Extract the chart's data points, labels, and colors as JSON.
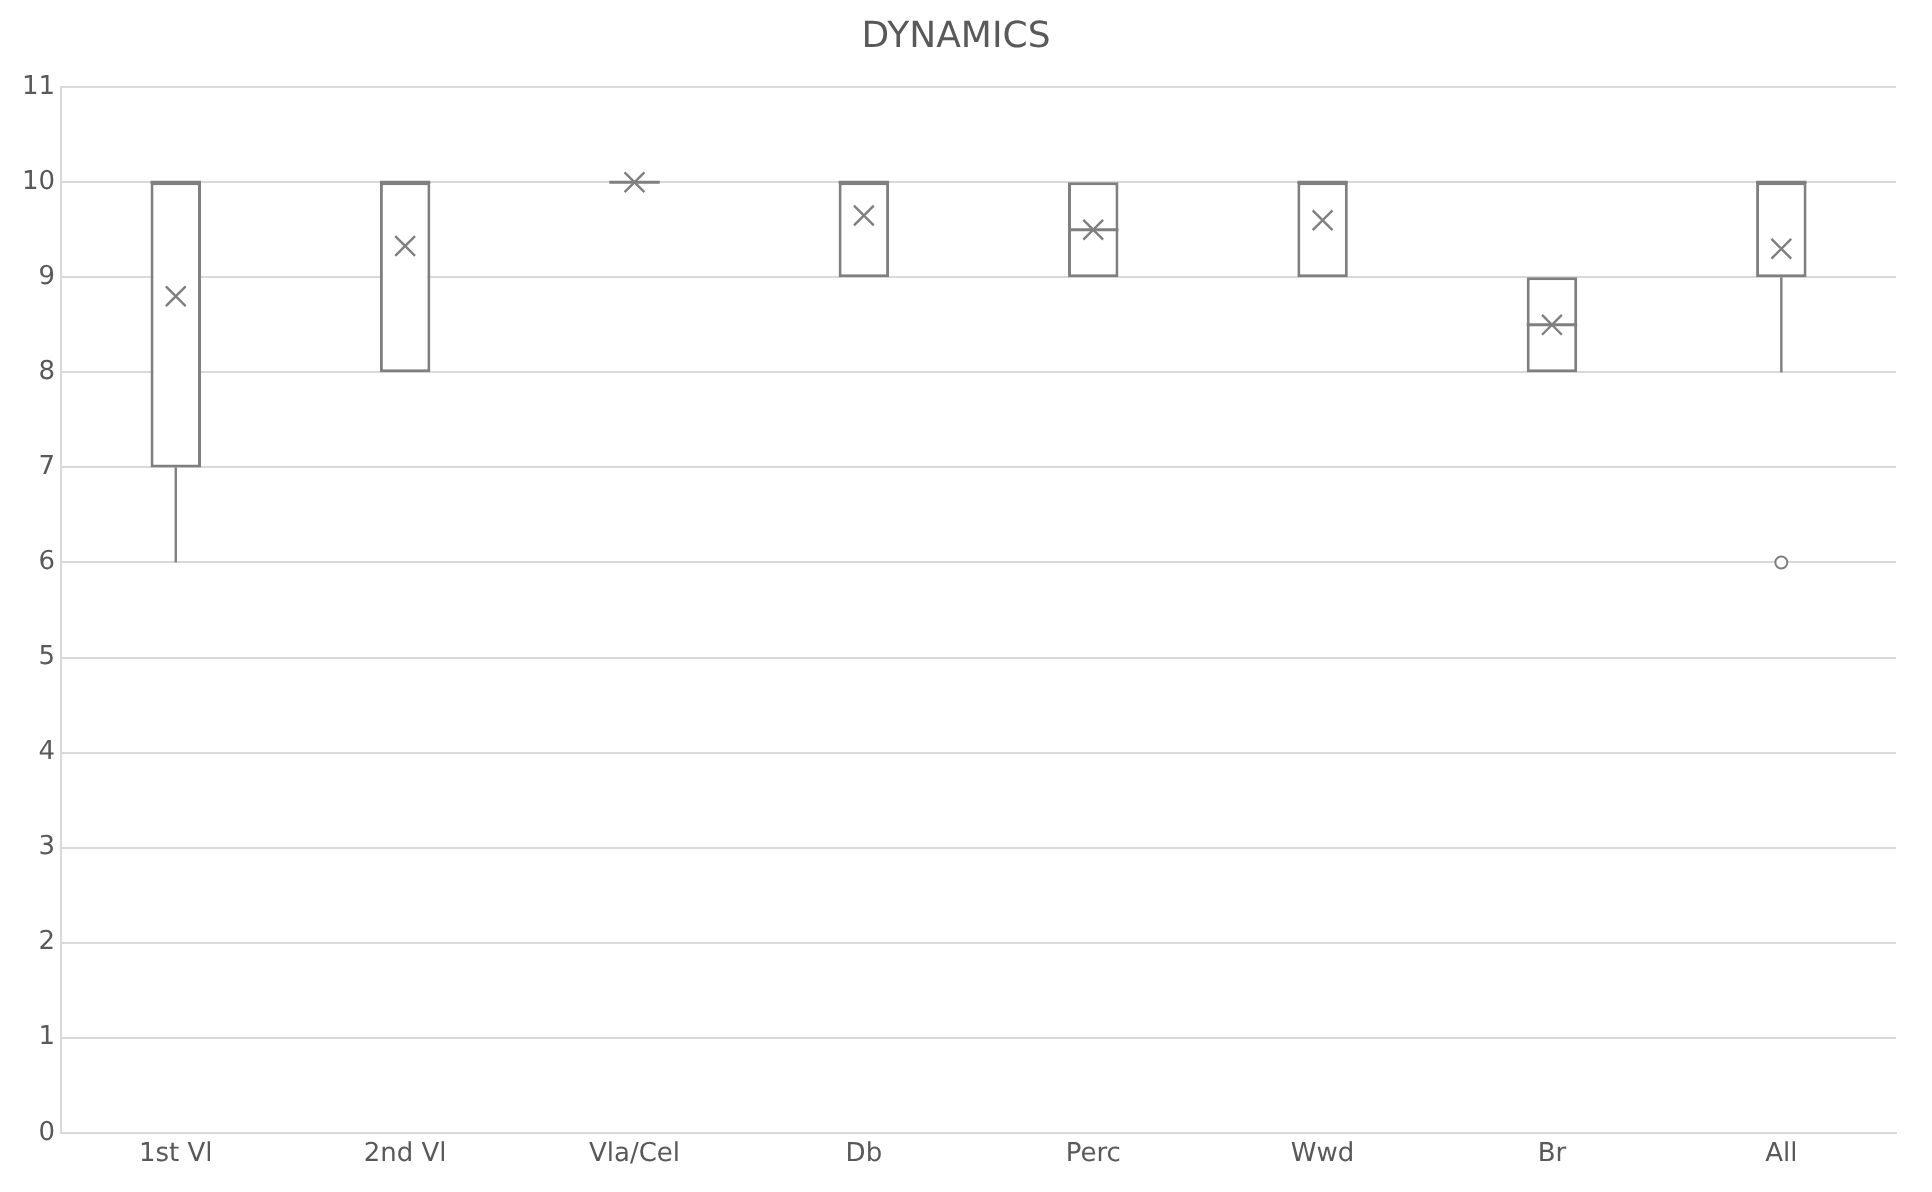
{
  "chart_data": {
    "type": "box",
    "title": "DYNAMICS",
    "categories": [
      "1st Vl",
      "2nd Vl",
      "Vla/Cel",
      "Db",
      "Perc",
      "Wwd",
      "Br",
      "All"
    ],
    "color": "#7f7f7f",
    "boxes": [
      {
        "low": 6,
        "q1": 7,
        "median": 10,
        "q3": 10,
        "high": 10,
        "mean": 8.8
      },
      {
        "low": 8,
        "q1": 8,
        "median": 10,
        "q3": 10,
        "high": 10,
        "mean": 9.33
      },
      {
        "low": 10,
        "q1": 10,
        "median": 10,
        "q3": 10,
        "high": 10,
        "mean": 10
      },
      {
        "low": 9,
        "q1": 9,
        "median": 10,
        "q3": 10,
        "high": 10,
        "mean": 9.65
      },
      {
        "low": 9,
        "q1": 9,
        "median": 9.5,
        "q3": 10,
        "high": 10,
        "mean": 9.5
      },
      {
        "low": 9,
        "q1": 9,
        "median": 10,
        "q3": 10,
        "high": 10,
        "mean": 9.6
      },
      {
        "low": 8,
        "q1": 8,
        "median": 8.5,
        "q3": 9,
        "high": 9,
        "mean": 8.5
      },
      {
        "low": 8,
        "q1": 9,
        "median": 10,
        "q3": 10,
        "high": 10,
        "mean": 9.3,
        "outliers": [
          6
        ]
      }
    ],
    "ylim": [
      0,
      11
    ],
    "yticks": [
      0,
      1,
      2,
      3,
      4,
      5,
      6,
      7,
      8,
      9,
      10,
      11
    ],
    "grid": "y",
    "legend": false
  }
}
